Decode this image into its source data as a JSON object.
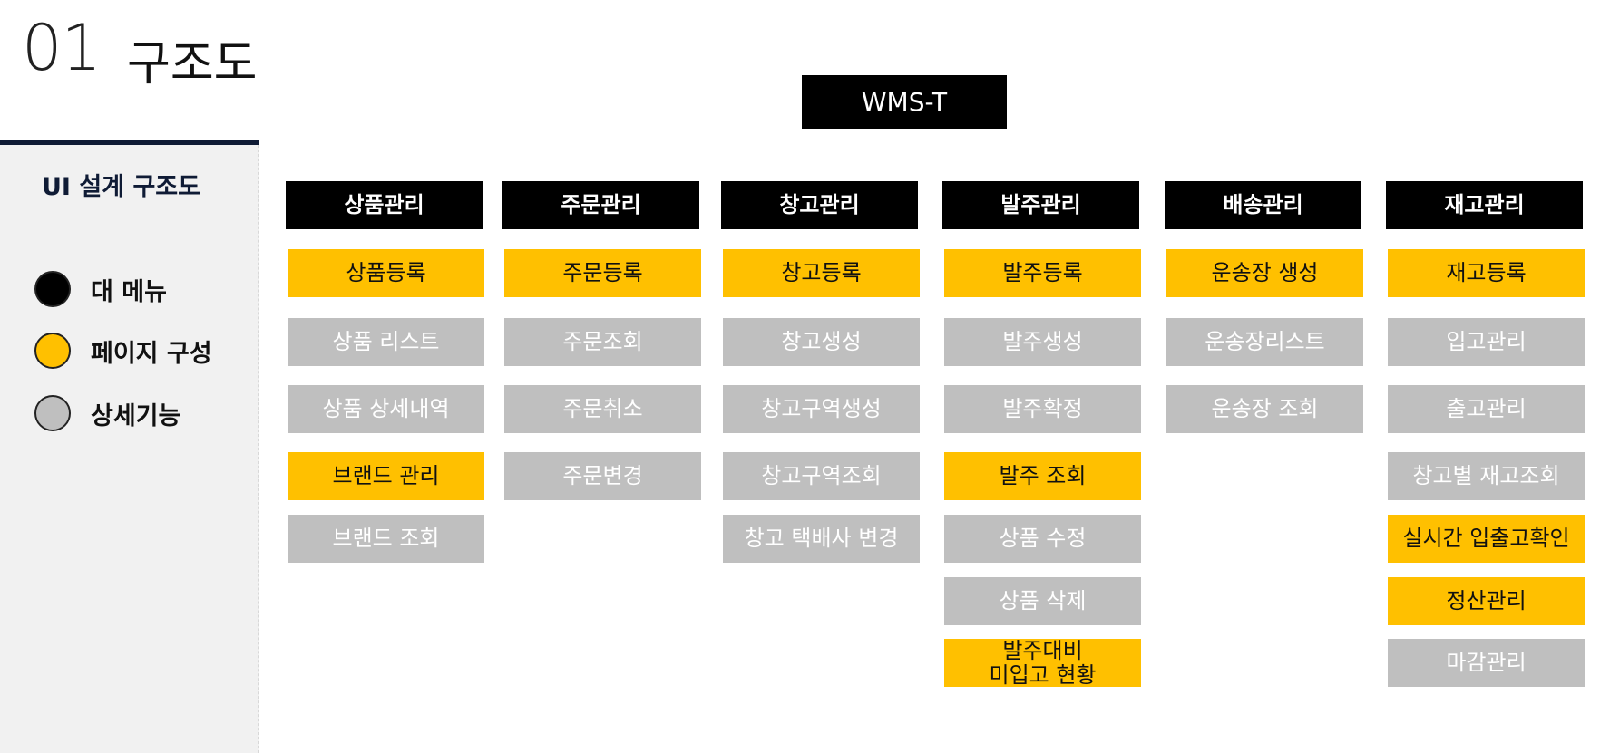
{
  "header": {
    "number": "01",
    "title": "구조도"
  },
  "sidebar": {
    "title": "UI 설계 구조도",
    "legend": [
      {
        "label": "대 메뉴",
        "color": "#000000"
      },
      {
        "label": "페이지 구성",
        "color": "#ffc000"
      },
      {
        "label": "상세기능",
        "color": "#bfbfbf"
      }
    ]
  },
  "root": {
    "label": "WMS-T"
  },
  "colors": {
    "main_menu": "#000000",
    "page": "#ffc000",
    "detail": "#bfbfbf",
    "rule": "#0f1b35"
  },
  "columns": [
    {
      "label": "상품관리",
      "items": [
        {
          "label": "상품등록",
          "kind": "page"
        },
        {
          "label": "상품 리스트",
          "kind": "detail"
        },
        {
          "label": "상품 상세내역",
          "kind": "detail"
        },
        {
          "label": "브랜드 관리",
          "kind": "page"
        },
        {
          "label": "브랜드 조회",
          "kind": "detail"
        }
      ]
    },
    {
      "label": "주문관리",
      "items": [
        {
          "label": "주문등록",
          "kind": "page"
        },
        {
          "label": "주문조회",
          "kind": "detail"
        },
        {
          "label": "주문취소",
          "kind": "detail"
        },
        {
          "label": "주문변경",
          "kind": "detail"
        }
      ]
    },
    {
      "label": "창고관리",
      "items": [
        {
          "label": "창고등록",
          "kind": "page"
        },
        {
          "label": "창고생성",
          "kind": "detail"
        },
        {
          "label": "창고구역생성",
          "kind": "detail"
        },
        {
          "label": "창고구역조회",
          "kind": "detail"
        },
        {
          "label": "창고 택배사 변경",
          "kind": "detail"
        }
      ]
    },
    {
      "label": "발주관리",
      "items": [
        {
          "label": "발주등록",
          "kind": "page"
        },
        {
          "label": "발주생성",
          "kind": "detail"
        },
        {
          "label": "발주확정",
          "kind": "detail"
        },
        {
          "label": "발주 조회",
          "kind": "page"
        },
        {
          "label": "상품 수정",
          "kind": "detail"
        },
        {
          "label": "상품 삭제",
          "kind": "detail"
        },
        {
          "label": "발주대비\n미입고 현황",
          "kind": "page"
        }
      ]
    },
    {
      "label": "배송관리",
      "items": [
        {
          "label": "운송장 생성",
          "kind": "page"
        },
        {
          "label": "운송장리스트",
          "kind": "detail"
        },
        {
          "label": "운송장 조회",
          "kind": "detail"
        }
      ]
    },
    {
      "label": "재고관리",
      "items": [
        {
          "label": "재고등록",
          "kind": "page"
        },
        {
          "label": "입고관리",
          "kind": "detail"
        },
        {
          "label": "출고관리",
          "kind": "detail"
        },
        {
          "label": "창고별 재고조회",
          "kind": "detail"
        },
        {
          "label": "실시간 입출고확인",
          "kind": "page"
        },
        {
          "label": "정산관리",
          "kind": "page"
        },
        {
          "label": "마감관리",
          "kind": "detail"
        }
      ]
    }
  ]
}
